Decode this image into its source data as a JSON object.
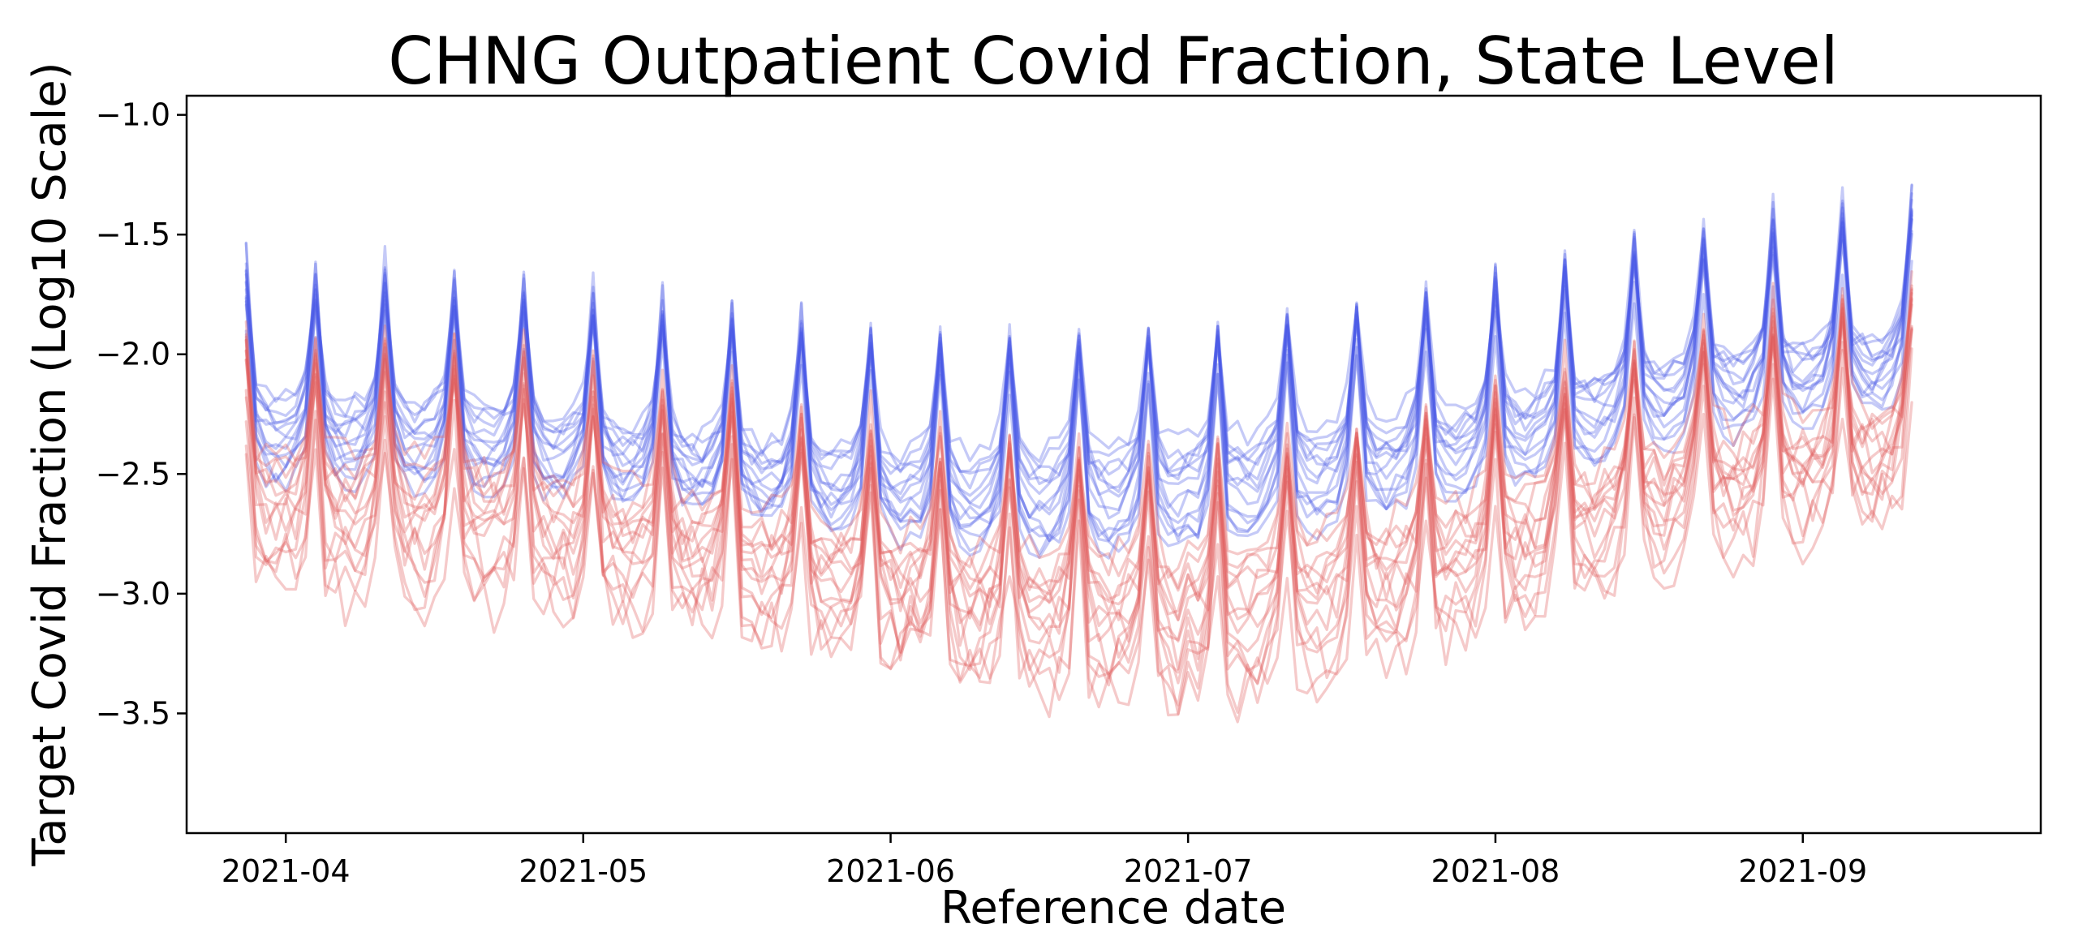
{
  "chart_data": {
    "type": "line",
    "title": "CHNG Outpatient Covid Fraction, State Level",
    "xlabel": "Reference date",
    "ylabel": "Target Covid Fraction (Log10 Scale)",
    "x_start": "2021-03-28",
    "x_end": "2021-09-12",
    "xlim": [
      "2021-03-22",
      "2021-09-25"
    ],
    "ylim": [
      -4.0,
      -0.92
    ],
    "x_ticks": [
      "2021-04",
      "2021-05",
      "2021-06",
      "2021-07",
      "2021-08",
      "2021-09"
    ],
    "x_tick_dates": [
      "2021-04-01",
      "2021-05-01",
      "2021-06-01",
      "2021-07-01",
      "2021-08-01",
      "2021-09-01"
    ],
    "y_ticks": [
      -1.0,
      -1.5,
      -2.0,
      -2.5,
      -3.0,
      -3.5
    ],
    "y_tick_labels": [
      "−1.0",
      "−1.5",
      "−2.0",
      "−2.5",
      "−3.0",
      "−3.5"
    ],
    "grid": false,
    "legend": false,
    "colors": {
      "blue_series": "#4a5ae6",
      "red_series": "#e05a5a"
    },
    "series_opacity": 0.32,
    "weekly_peak_weekday": "Sunday",
    "series": [
      {
        "color": "blue",
        "level": [
          -2.15,
          -2.25,
          -2.35,
          -2.45,
          -2.4,
          -2.3,
          -2.05,
          -1.95
        ],
        "peak": 0.48,
        "noise": 0.05
      },
      {
        "color": "blue",
        "level": [
          -2.25,
          -2.35,
          -2.5,
          -2.55,
          -2.5,
          -2.35,
          -2.1,
          -2.0
        ],
        "peak": 0.6,
        "noise": 0.05
      },
      {
        "color": "blue",
        "level": [
          -2.35,
          -2.4,
          -2.55,
          -2.7,
          -2.7,
          -2.5,
          -2.2,
          -2.05
        ],
        "peak": 0.78,
        "noise": 0.05
      },
      {
        "color": "blue",
        "level": [
          -2.4,
          -2.45,
          -2.6,
          -2.8,
          -2.75,
          -2.55,
          -2.3,
          -2.1
        ],
        "peak": 0.82,
        "noise": 0.05
      },
      {
        "color": "blue",
        "level": [
          -2.3,
          -2.3,
          -2.4,
          -2.5,
          -2.45,
          -2.35,
          -2.0,
          -1.95
        ],
        "peak": 0.55,
        "noise": 0.05
      },
      {
        "color": "blue",
        "level": [
          -2.45,
          -2.5,
          -2.6,
          -2.75,
          -2.8,
          -2.6,
          -2.3,
          -2.15
        ],
        "peak": 0.7,
        "noise": 0.05
      },
      {
        "color": "blue",
        "level": [
          -2.25,
          -2.3,
          -2.45,
          -2.6,
          -2.55,
          -2.4,
          -2.15,
          -2.05
        ],
        "peak": 0.62,
        "noise": 0.05
      },
      {
        "color": "blue",
        "level": [
          -2.2,
          -2.2,
          -2.35,
          -2.4,
          -2.35,
          -2.2,
          -2.05,
          -1.9
        ],
        "peak": 0.45,
        "noise": 0.05
      },
      {
        "color": "blue",
        "level": [
          -2.35,
          -2.4,
          -2.5,
          -2.65,
          -2.6,
          -2.45,
          -2.2,
          -2.0
        ],
        "peak": 0.72,
        "noise": 0.05
      },
      {
        "color": "blue",
        "level": [
          -2.4,
          -2.45,
          -2.55,
          -2.7,
          -2.75,
          -2.5,
          -2.25,
          -2.1
        ],
        "peak": 0.65,
        "noise": 0.05
      },
      {
        "color": "blue",
        "level": [
          -2.3,
          -2.35,
          -2.45,
          -2.55,
          -2.5,
          -2.35,
          -2.1,
          -1.95
        ],
        "peak": 0.58,
        "noise": 0.05
      },
      {
        "color": "blue",
        "level": [
          -2.5,
          -2.55,
          -2.6,
          -2.75,
          -2.7,
          -2.55,
          -2.35,
          -2.2
        ],
        "peak": 0.6,
        "noise": 0.05
      },
      {
        "color": "blue",
        "level": [
          -2.2,
          -2.25,
          -2.4,
          -2.5,
          -2.45,
          -2.3,
          -2.05,
          -2.0
        ],
        "peak": 0.5,
        "noise": 0.05
      },
      {
        "color": "blue",
        "level": [
          -2.45,
          -2.5,
          -2.55,
          -2.65,
          -2.6,
          -2.4,
          -2.2,
          -2.05
        ],
        "peak": 0.68,
        "noise": 0.05
      },
      {
        "color": "red",
        "level": [
          -2.5,
          -2.55,
          -2.8,
          -3.0,
          -3.0,
          -2.85,
          -2.55,
          -2.4
        ],
        "peak": 0.6,
        "noise": 0.1
      },
      {
        "color": "red",
        "level": [
          -2.7,
          -2.75,
          -2.9,
          -3.1,
          -3.2,
          -2.95,
          -2.6,
          -2.45
        ],
        "peak": 0.7,
        "noise": 0.12
      },
      {
        "color": "red",
        "level": [
          -2.6,
          -2.7,
          -2.85,
          -3.05,
          -3.1,
          -2.9,
          -2.55,
          -2.35
        ],
        "peak": 0.55,
        "noise": 0.1
      },
      {
        "color": "red",
        "level": [
          -2.8,
          -2.85,
          -3.0,
          -3.2,
          -3.35,
          -3.1,
          -2.75,
          -2.55
        ],
        "peak": 0.75,
        "noise": 0.14
      },
      {
        "color": "red",
        "level": [
          -2.45,
          -2.5,
          -2.7,
          -2.9,
          -2.9,
          -2.7,
          -2.45,
          -2.3
        ],
        "peak": 0.45,
        "noise": 0.09
      },
      {
        "color": "red",
        "level": [
          -2.9,
          -2.95,
          -3.1,
          -3.3,
          -3.4,
          -3.2,
          -2.8,
          -2.6
        ],
        "peak": 0.65,
        "noise": 0.14
      },
      {
        "color": "red",
        "level": [
          -2.6,
          -2.65,
          -2.8,
          -2.95,
          -3.0,
          -2.8,
          -2.5,
          -2.3
        ],
        "peak": 0.5,
        "noise": 0.1
      },
      {
        "color": "red",
        "level": [
          -2.75,
          -2.8,
          -2.95,
          -3.15,
          -3.25,
          -3.0,
          -2.65,
          -2.45
        ],
        "peak": 0.68,
        "noise": 0.12
      },
      {
        "color": "red",
        "level": [
          -2.55,
          -2.6,
          -2.75,
          -2.95,
          -3.05,
          -2.85,
          -2.5,
          -2.35
        ],
        "peak": 0.58,
        "noise": 0.1
      },
      {
        "color": "red",
        "level": [
          -2.85,
          -2.9,
          -3.05,
          -3.25,
          -3.3,
          -3.05,
          -2.7,
          -2.5
        ],
        "peak": 0.62,
        "noise": 0.13
      },
      {
        "color": "red",
        "level": [
          -2.4,
          -2.45,
          -2.6,
          -2.8,
          -2.85,
          -2.65,
          -2.35,
          -2.2
        ],
        "peak": 0.4,
        "noise": 0.09
      },
      {
        "color": "red",
        "level": [
          -2.95,
          -3.0,
          -3.1,
          -3.3,
          -3.45,
          -3.2,
          -2.85,
          -2.65
        ],
        "peak": 0.55,
        "noise": 0.15
      },
      {
        "color": "red",
        "level": [
          -2.65,
          -2.7,
          -2.85,
          -3.05,
          -3.15,
          -2.95,
          -2.6,
          -2.4
        ],
        "peak": 0.72,
        "noise": 0.11
      },
      {
        "color": "red",
        "level": [
          -2.5,
          -2.55,
          -2.7,
          -2.9,
          -2.95,
          -2.75,
          -2.45,
          -2.25
        ],
        "peak": 0.5,
        "noise": 0.1
      }
    ]
  }
}
